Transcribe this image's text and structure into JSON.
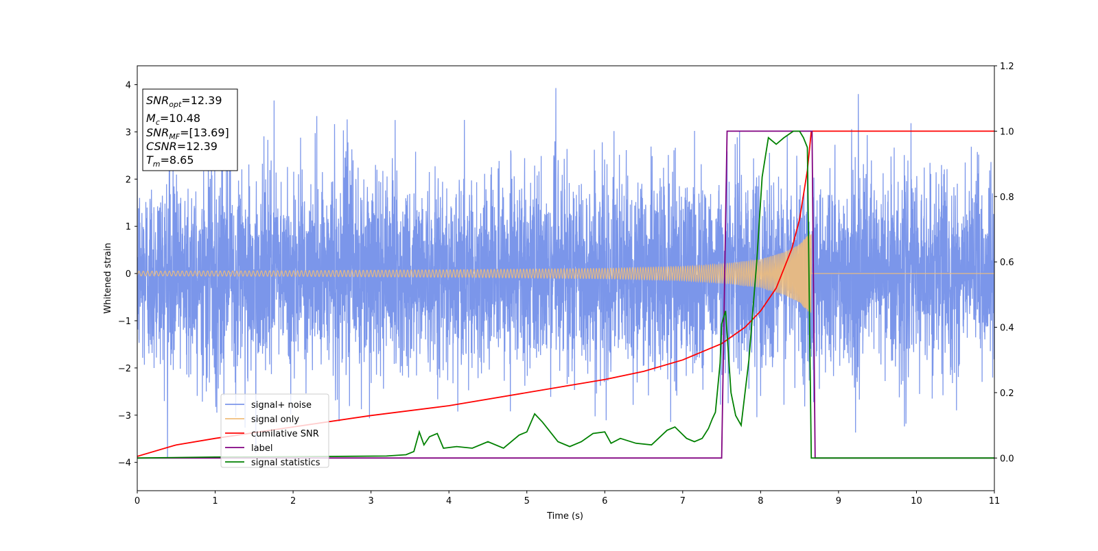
{
  "chart_data": {
    "type": "line",
    "title": "",
    "xlabel": "Time (s)",
    "ylabel": "Whitened strain",
    "y2label": "",
    "xlim": [
      0,
      11
    ],
    "ylim": [
      -4.6,
      4.4
    ],
    "y2lim": [
      -0.1,
      1.2
    ],
    "xticks": [
      "0",
      "1",
      "2",
      "3",
      "4",
      "5",
      "6",
      "7",
      "8",
      "9",
      "10",
      "11"
    ],
    "yticks": [
      "−4",
      "−3",
      "−2",
      "−1",
      "0",
      "1",
      "2",
      "3",
      "4"
    ],
    "y2ticks": [
      "0.0",
      "0.2",
      "0.4",
      "0.6",
      "0.8",
      "1.0",
      "1.2"
    ],
    "grid": false,
    "legend_position": "lower-left",
    "info_box": {
      "snr_opt": {
        "sym": "SNR",
        "sub": "opt",
        "val": "=12.39"
      },
      "mc": {
        "sym": "M",
        "sub": "c",
        "val": "=10.48"
      },
      "snr_mf": {
        "sym": "SNR",
        "sub": "MF",
        "val": "=[13.69]"
      },
      "csnr": {
        "sym": "CSNR",
        "sub": "",
        "val": "=12.39"
      },
      "tm": {
        "sym": "T",
        "sub": "m",
        "val": "=8.65"
      }
    },
    "series": [
      {
        "name": "signal+ noise",
        "axis": "left",
        "color": "#7b96ea",
        "description": "whitened noise, peaks about ±4",
        "amplitude_envelope": 4.0
      },
      {
        "name": "signal only",
        "axis": "left",
        "color": "#f0bd7a",
        "description": "chirp amplitude growing to merger at 8.65 s then zero",
        "envelope_x": [
          0,
          2,
          4,
          6,
          7,
          7.5,
          8,
          8.3,
          8.5,
          8.6,
          8.65
        ],
        "envelope_y": [
          0.05,
          0.06,
          0.08,
          0.11,
          0.15,
          0.2,
          0.3,
          0.45,
          0.62,
          0.8,
          0.85
        ]
      },
      {
        "name": "cumilative SNR",
        "axis": "right",
        "color": "#ff0000",
        "x": [
          0,
          0.5,
          1,
          2,
          3,
          4,
          5,
          6,
          6.5,
          7,
          7.5,
          7.8,
          8.0,
          8.2,
          8.4,
          8.5,
          8.6,
          8.65,
          11
        ],
        "y": [
          0.005,
          0.04,
          0.06,
          0.095,
          0.13,
          0.16,
          0.2,
          0.24,
          0.265,
          0.3,
          0.35,
          0.4,
          0.45,
          0.52,
          0.64,
          0.73,
          0.88,
          1.0,
          1.0
        ]
      },
      {
        "name": "label",
        "axis": "right",
        "color": "#800080",
        "x": [
          0,
          7.5,
          7.57,
          8.66,
          8.7,
          11
        ],
        "y": [
          0,
          0,
          1,
          1,
          0,
          0
        ]
      },
      {
        "name": "signal statistics",
        "axis": "right",
        "color": "#008000",
        "x": [
          0,
          1,
          2,
          3.2,
          3.45,
          3.55,
          3.62,
          3.68,
          3.75,
          3.85,
          3.93,
          4.1,
          4.3,
          4.5,
          4.7,
          4.9,
          5.0,
          5.1,
          5.2,
          5.4,
          5.55,
          5.7,
          5.85,
          6.0,
          6.08,
          6.2,
          6.4,
          6.6,
          6.8,
          6.9,
          7.05,
          7.15,
          7.25,
          7.33,
          7.38,
          7.42,
          7.48,
          7.5,
          7.55,
          7.62,
          7.68,
          7.75,
          7.85,
          7.95,
          8.02,
          8.1,
          8.2,
          8.3,
          8.42,
          8.5,
          8.55,
          8.6,
          8.65,
          8.7,
          11
        ],
        "y": [
          0,
          0.003,
          0.004,
          0.006,
          0.01,
          0.02,
          0.08,
          0.04,
          0.065,
          0.075,
          0.03,
          0.035,
          0.03,
          0.05,
          0.03,
          0.07,
          0.08,
          0.135,
          0.11,
          0.05,
          0.035,
          0.05,
          0.075,
          0.08,
          0.045,
          0.06,
          0.045,
          0.04,
          0.085,
          0.095,
          0.06,
          0.05,
          0.06,
          0.09,
          0.12,
          0.14,
          0.29,
          0.41,
          0.45,
          0.2,
          0.13,
          0.1,
          0.3,
          0.6,
          0.86,
          0.98,
          0.96,
          0.98,
          1.0,
          1.0,
          0.98,
          0.95,
          0.0,
          0.0,
          0.0
        ]
      }
    ]
  }
}
